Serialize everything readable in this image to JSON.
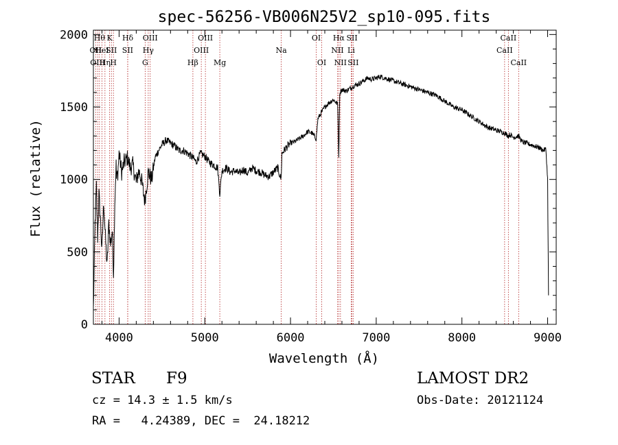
{
  "chart_data": {
    "type": "line",
    "title": "spec-56256-VB006N25V2_sp10-095.fits",
    "xlabel": "Wavelength (Å)",
    "ylabel": "Flux (relative)",
    "xlim": [
      3700,
      9100
    ],
    "ylim": [
      0,
      2030
    ],
    "xticks": [
      {
        "value": 4000,
        "label": "4000"
      },
      {
        "value": 5000,
        "label": "5000"
      },
      {
        "value": 6000,
        "label": "6000"
      },
      {
        "value": 7000,
        "label": "7000"
      },
      {
        "value": 8000,
        "label": "8000"
      },
      {
        "value": 9000,
        "label": "9000"
      }
    ],
    "yticks": [
      {
        "value": 0,
        "label": "0"
      },
      {
        "value": 500,
        "label": "500"
      },
      {
        "value": 1000,
        "label": "1000"
      },
      {
        "value": 1500,
        "label": "1500"
      },
      {
        "value": 2000,
        "label": "2000"
      }
    ],
    "grid": false,
    "series": [
      {
        "color": "#000000",
        "x": [
          3700,
          3720,
          3735,
          3750,
          3765,
          3780,
          3800,
          3820,
          3840,
          3860,
          3880,
          3900,
          3920,
          3935,
          3950,
          3965,
          3970,
          3985,
          4000,
          4030,
          4060,
          4101,
          4130,
          4160,
          4200,
          4230,
          4260,
          4300,
          4340,
          4380,
          4420,
          4460,
          4500,
          4550,
          4600,
          4650,
          4700,
          4750,
          4800,
          4861,
          4900,
          4950,
          5000,
          5050,
          5100,
          5150,
          5175,
          5200,
          5250,
          5300,
          5350,
          5400,
          5450,
          5500,
          5550,
          5600,
          5650,
          5700,
          5750,
          5800,
          5850,
          5890,
          5900,
          5950,
          6000,
          6050,
          6100,
          6150,
          6200,
          6250,
          6300,
          6320,
          6350,
          6400,
          6450,
          6500,
          6550,
          6563,
          6575,
          6600,
          6650,
          6700,
          6750,
          6800,
          6850,
          6900,
          6950,
          7000,
          7050,
          7100,
          7150,
          7200,
          7250,
          7300,
          7350,
          7400,
          7450,
          7500,
          7550,
          7600,
          7650,
          7700,
          7750,
          7800,
          7850,
          7900,
          7950,
          8000,
          8050,
          8100,
          8150,
          8200,
          8250,
          8300,
          8350,
          8400,
          8450,
          8500,
          8542,
          8560,
          8600,
          8662,
          8700,
          8750,
          8800,
          8850,
          8900,
          8950,
          8980,
          9000,
          9010
        ],
        "y": [
          100,
          700,
          950,
          600,
          900,
          750,
          500,
          850,
          600,
          400,
          700,
          550,
          650,
          350,
          850,
          1100,
          1000,
          1050,
          1180,
          1050,
          1120,
          1150,
          1080,
          1100,
          980,
          1060,
          1000,
          850,
          1050,
          1000,
          1150,
          1200,
          1240,
          1270,
          1250,
          1230,
          1200,
          1200,
          1180,
          1150,
          1120,
          1180,
          1160,
          1120,
          1100,
          1080,
          900,
          1060,
          1080,
          1050,
          1060,
          1040,
          1070,
          1040,
          1080,
          1060,
          1050,
          1030,
          1020,
          1050,
          1080,
          1000,
          1180,
          1220,
          1250,
          1260,
          1280,
          1300,
          1330,
          1320,
          1280,
          1420,
          1450,
          1500,
          1530,
          1550,
          1520,
          1150,
          1600,
          1620,
          1610,
          1630,
          1650,
          1660,
          1680,
          1700,
          1690,
          1700,
          1710,
          1700,
          1690,
          1680,
          1670,
          1660,
          1650,
          1640,
          1630,
          1620,
          1610,
          1600,
          1590,
          1580,
          1560,
          1540,
          1520,
          1500,
          1490,
          1480,
          1460,
          1440,
          1420,
          1400,
          1380,
          1360,
          1350,
          1340,
          1330,
          1320,
          1300,
          1310,
          1290,
          1300,
          1260,
          1250,
          1240,
          1230,
          1220,
          1200,
          1210,
          1000,
          200
        ]
      }
    ],
    "lines": [
      {
        "wl": 3727,
        "row": 1,
        "label": "OII"
      },
      {
        "wl": 3750,
        "row": 2,
        "label": "OIII"
      },
      {
        "wl": 3771,
        "row": 0,
        "label": "Hθ"
      },
      {
        "wl": 3800,
        "row": 1,
        "label": "HeI"
      },
      {
        "wl": 3835,
        "row": 2,
        "label": "Hη"
      },
      {
        "wl": 3889,
        "row": 0,
        "label": "K"
      },
      {
        "wl": 3910,
        "row": 1,
        "label": "SII"
      },
      {
        "wl": 3934,
        "row": 2,
        "label": "H"
      },
      {
        "wl": 4101,
        "row": 0,
        "label": "Hδ"
      },
      {
        "wl": 4100,
        "row": 1,
        "label": "SII"
      },
      {
        "wl": 4304,
        "row": 2,
        "label": "G"
      },
      {
        "wl": 4340,
        "row": 1,
        "label": "Hγ"
      },
      {
        "wl": 4363,
        "row": 0,
        "label": "OIII"
      },
      {
        "wl": 4861,
        "row": 2,
        "label": "Hβ"
      },
      {
        "wl": 4959,
        "row": 1,
        "label": "OIII"
      },
      {
        "wl": 5007,
        "row": 0,
        "label": "OIII"
      },
      {
        "wl": 5175,
        "row": 2,
        "label": "Mg"
      },
      {
        "wl": 5892,
        "row": 1,
        "label": "Na"
      },
      {
        "wl": 6300,
        "row": 0,
        "label": "OI"
      },
      {
        "wl": 6364,
        "row": 2,
        "label": "OI"
      },
      {
        "wl": 6548,
        "row": 1,
        "label": "NII"
      },
      {
        "wl": 6563,
        "row": 0,
        "label": "Hα"
      },
      {
        "wl": 6583,
        "row": 2,
        "label": "NII"
      },
      {
        "wl": 6708,
        "row": 1,
        "label": "Li"
      },
      {
        "wl": 6717,
        "row": 0,
        "label": "SII"
      },
      {
        "wl": 6731,
        "row": 2,
        "label": "SII"
      },
      {
        "wl": 8498,
        "row": 1,
        "label": "CaII"
      },
      {
        "wl": 8542,
        "row": 0,
        "label": "CaII"
      },
      {
        "wl": 8662,
        "row": 2,
        "label": "CaII"
      }
    ]
  },
  "info": {
    "class": "STAR",
    "subclass": "F9",
    "survey": "LAMOST DR2",
    "cz": "cz = 14.3 ± 1.5 km/s",
    "obs_date": "Obs-Date: 20121124",
    "radec": "RA =   4.24389, DEC =  24.18212"
  }
}
